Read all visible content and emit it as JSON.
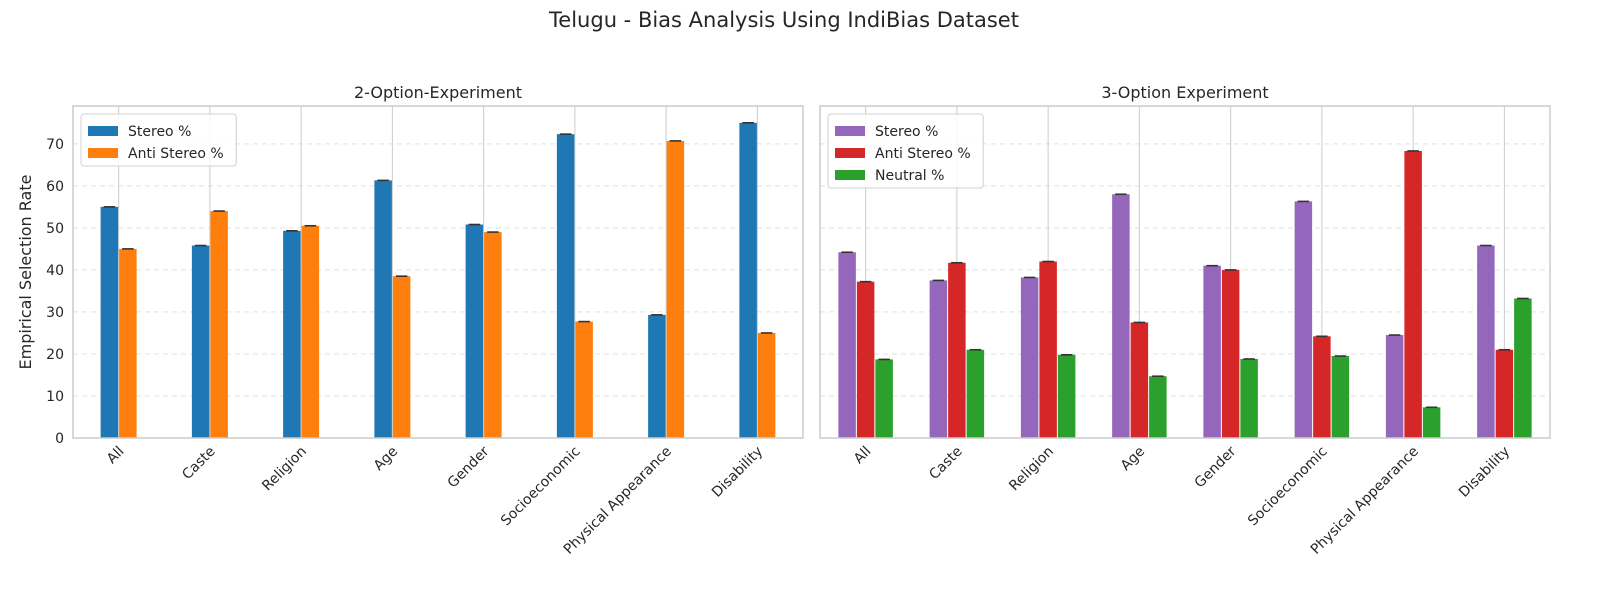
{
  "figure": {
    "title": "Telugu - Bias Analysis Using IndiBias Dataset"
  },
  "shared_ylabel": "Empirical Selection Rate",
  "chart_data": [
    {
      "type": "bar",
      "title": "2-Option-Experiment",
      "categories": [
        "All",
        "Caste",
        "Religion",
        "Age",
        "Gender",
        "Socioeconomic",
        "Physical Appearance",
        "Disability"
      ],
      "ylim": [
        0,
        79
      ],
      "yticks": [
        0,
        10,
        20,
        30,
        40,
        50,
        60,
        70
      ],
      "ylabel": "Empirical Selection Rate",
      "grid": true,
      "legend_position": "top-left",
      "error_bars": true,
      "series": [
        {
          "name": "Stereo %",
          "color": "#1f77b4",
          "values": [
            55.0,
            45.8,
            49.3,
            61.3,
            50.8,
            72.3,
            29.3,
            75.0
          ]
        },
        {
          "name": "Anti Stereo %",
          "color": "#ff7f0e",
          "values": [
            45.0,
            54.0,
            50.5,
            38.5,
            49.0,
            27.7,
            70.7,
            25.0
          ]
        }
      ]
    },
    {
      "type": "bar",
      "title": "3-Option Experiment",
      "categories": [
        "All",
        "Caste",
        "Religion",
        "Age",
        "Gender",
        "Socioeconomic",
        "Physical Appearance",
        "Disability"
      ],
      "ylim": [
        0,
        79
      ],
      "yticks": [
        0,
        10,
        20,
        30,
        40,
        50,
        60,
        70
      ],
      "grid": true,
      "legend_position": "top-left",
      "error_bars": true,
      "series": [
        {
          "name": "Stereo %",
          "color": "#9467bd",
          "values": [
            44.2,
            37.5,
            38.2,
            58.0,
            41.0,
            56.3,
            24.5,
            45.8
          ]
        },
        {
          "name": "Anti Stereo %",
          "color": "#d62728",
          "values": [
            37.2,
            41.7,
            42.0,
            27.5,
            40.0,
            24.2,
            68.3,
            21.0
          ]
        },
        {
          "name": "Neutral %",
          "color": "#2ca02c",
          "values": [
            18.7,
            21.0,
            19.8,
            14.7,
            18.8,
            19.5,
            7.3,
            33.2
          ]
        }
      ]
    }
  ]
}
